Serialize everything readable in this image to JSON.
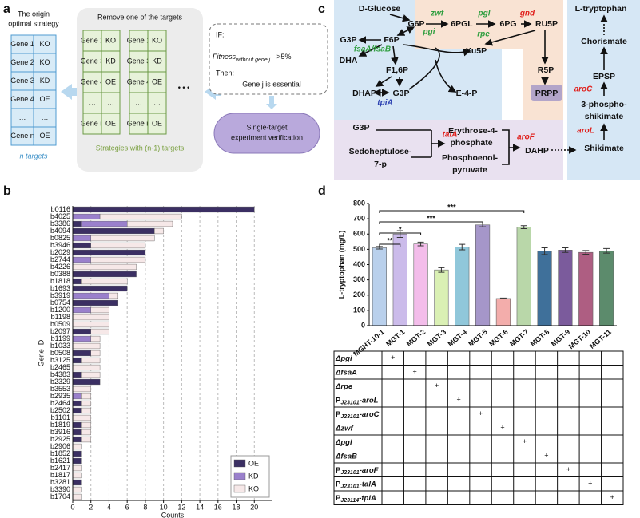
{
  "panel_labels": [
    "a",
    "b",
    "c",
    "d"
  ],
  "panel_a": {
    "origin_title": [
      "The origin",
      "optimal strategy"
    ],
    "origin_table": [
      [
        "Gene 1",
        "KO"
      ],
      [
        "Gene 2",
        "KO"
      ],
      [
        "Gene 3",
        "KD"
      ],
      [
        "Gene 4",
        "OE"
      ],
      [
        "…",
        "…"
      ],
      [
        "Gene n",
        "OE"
      ]
    ],
    "origin_caption": "n targets",
    "remove_title": "Remove one of the targets",
    "tables": [
      [
        [
          "Gene 2",
          "KO"
        ],
        [
          "Gene 3",
          "KD"
        ],
        [
          "Gene 4",
          "OE"
        ],
        [
          "…",
          "…"
        ],
        [
          "Gene n",
          "OE"
        ]
      ],
      [
        [
          "Gene 1",
          "KO"
        ],
        [
          "Gene 3",
          "KD"
        ],
        [
          "Gene 4",
          "OE"
        ],
        [
          "…",
          "…"
        ],
        [
          "Gene n",
          "OE"
        ]
      ]
    ],
    "ellipsis": "• • •",
    "strategies_caption": "Strategies with (n-1) targets",
    "if": "IF:",
    "fitness": "Fitness",
    "fitness_sub": "without gene j",
    "threshold": ">5%",
    "then": "Then:",
    "conclusion": "Gene j is essential",
    "verification": [
      "Single-target",
      "experiment verification"
    ]
  },
  "panel_c": {
    "nodes": [
      "D-Glucose",
      "G6P",
      "6PGL",
      "6PG",
      "RU5P",
      "G3P",
      "F6P",
      "Xu5P",
      "DHA",
      "F1,6P",
      "R5P",
      "DHAP",
      "G3P",
      "E-4-P",
      "PRPP",
      "G3P",
      [
        "Erythrose-4-",
        "phosphate"
      ],
      [
        "Sedoheptulose-",
        "7-p"
      ],
      [
        "Phosphoenol-",
        "pyruvate"
      ],
      "DAHP",
      "L-tryptophan",
      "Chorismate",
      "EPSP",
      [
        "3-phospho-",
        "shikimate"
      ],
      "Shikimate"
    ],
    "enzymes": [
      "zwf",
      "pgl",
      "gnd",
      "pgi",
      "rpe",
      "fsaA/fsaB",
      "tpiA",
      "talA",
      "aroF",
      "aroC",
      "aroL"
    ]
  },
  "chart_data": [
    {
      "type": "barh_stacked",
      "x_label": "Counts",
      "y_label": "Gene ID",
      "categories": [
        "b0116",
        "b4025",
        "b3386",
        "b4094",
        "b0825",
        "b3946",
        "b2029",
        "b2744",
        "b4226",
        "b0388",
        "b1818",
        "b1693",
        "b3919",
        "b0754",
        "b1200",
        "b1198",
        "b0509",
        "b2097",
        "b1199",
        "b1033",
        "b0508",
        "b3125",
        "b2465",
        "b4383",
        "b2329",
        "b3553",
        "b2935",
        "b2464",
        "b2502",
        "b1101",
        "b1819",
        "b3916",
        "b2925",
        "b2906",
        "b1852",
        "b1621",
        "b2417",
        "b1817",
        "b3281",
        "b3390",
        "b1704"
      ],
      "series": [
        {
          "name": "OE",
          "color": "#3b2f63",
          "values": [
            20,
            0,
            1,
            9,
            0,
            2,
            8,
            0,
            0,
            7,
            1,
            6,
            0,
            5,
            0,
            0,
            0,
            2,
            0,
            0,
            2,
            1,
            0,
            1,
            3,
            0,
            0,
            1,
            1,
            0,
            1,
            1,
            1,
            0,
            1,
            1,
            0,
            0,
            1,
            0,
            0
          ]
        },
        {
          "name": "KD",
          "color": "#9a80cc",
          "values": [
            0,
            3,
            5,
            0,
            2,
            0,
            0,
            2,
            0,
            0,
            0,
            0,
            4,
            0,
            2,
            0,
            0,
            0,
            2,
            0,
            0,
            0,
            0,
            0,
            0,
            0,
            1,
            0,
            0,
            0,
            0,
            0,
            0,
            0,
            0,
            0,
            0,
            0,
            0,
            0,
            0
          ]
        },
        {
          "name": "KO",
          "color": "#f6e8e8",
          "values": [
            0,
            9,
            5,
            1,
            7,
            6,
            0,
            6,
            7,
            0,
            5,
            0,
            1,
            0,
            2,
            4,
            4,
            2,
            1,
            3,
            1,
            2,
            3,
            2,
            0,
            2,
            1,
            1,
            1,
            2,
            1,
            1,
            1,
            1,
            0,
            0,
            1,
            1,
            0,
            1,
            1
          ]
        }
      ],
      "xlim": [
        0,
        22
      ],
      "xticks": [
        0,
        2,
        4,
        6,
        8,
        10,
        12,
        14,
        16,
        18,
        20
      ],
      "grid": true,
      "legend": "lower right"
    },
    {
      "type": "bar",
      "y_label": "L-tryptophan (mg/L)",
      "categories": [
        "MGHT-10-1",
        "MGT-1",
        "MGT-2",
        "MGT-3",
        "MGT-4",
        "MGT-5",
        "MGT-6",
        "MGT-7",
        "MGT-8",
        "MGT-9",
        "MGT-10",
        "MGT-11"
      ],
      "values": [
        510,
        600,
        535,
        365,
        515,
        660,
        178,
        645,
        488,
        495,
        480,
        490
      ],
      "errors": [
        8,
        22,
        12,
        15,
        18,
        12,
        3,
        10,
        22,
        15,
        12,
        15
      ],
      "colors": [
        "#b9d0ec",
        "#cbbbea",
        "#f3bdea",
        "#daf0b4",
        "#90c7da",
        "#a596c9",
        "#f3adab",
        "#b9d7a9",
        "#3f709a",
        "#7b5b9c",
        "#ae5e82",
        "#5c8b6c"
      ],
      "ylim": [
        0,
        800
      ],
      "yticks": [
        0,
        100,
        200,
        300,
        400,
        500,
        600,
        700,
        800
      ],
      "significance": [
        {
          "from": 0,
          "to": 7,
          "label": "***"
        },
        {
          "from": 0,
          "to": 5,
          "label": "***"
        },
        {
          "from": 0,
          "to": 2,
          "label": "*"
        },
        {
          "from": 0,
          "to": 1,
          "label": "**"
        }
      ]
    }
  ],
  "knockout_table": {
    "rows": [
      {
        "label": [
          "Δpgi"
        ],
        "column": 0,
        "mark": "+"
      },
      {
        "label": [
          "ΔfsaA"
        ],
        "column": 1,
        "mark": "+"
      },
      {
        "label": [
          "Δrpe"
        ],
        "column": 2,
        "mark": "+"
      },
      {
        "label": [
          "P",
          "J23101",
          "-aroL"
        ],
        "column": 3,
        "mark": "+"
      },
      {
        "label": [
          "P",
          "J23101",
          "-aroC"
        ],
        "column": 4,
        "mark": "+"
      },
      {
        "label": [
          "Δzwf"
        ],
        "column": 5,
        "mark": "+"
      },
      {
        "label": [
          "Δpgl"
        ],
        "column": 6,
        "mark": "+"
      },
      {
        "label": [
          "ΔfsaB"
        ],
        "column": 7,
        "mark": "+"
      },
      {
        "label": [
          "P",
          "J23101",
          "-aroF"
        ],
        "column": 8,
        "mark": "+"
      },
      {
        "label": [
          "P",
          "J23101",
          "-talA"
        ],
        "column": 9,
        "mark": "+"
      },
      {
        "label": [
          "P",
          "J23114",
          "-tpiA"
        ],
        "column": 10,
        "mark": "+"
      }
    ]
  }
}
